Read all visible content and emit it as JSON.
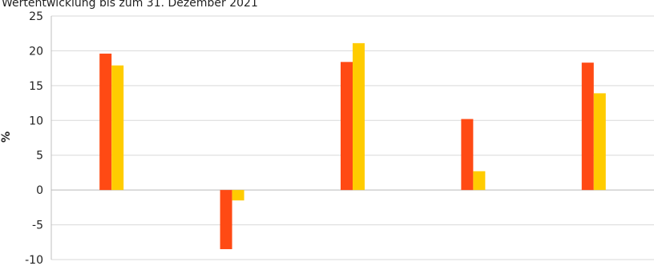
{
  "chart_data": {
    "type": "bar",
    "title": "Wertentwicklung bis zum 31. Dezember 2021",
    "ylabel": "%",
    "xlabel": "",
    "ylim": [
      -10,
      25
    ],
    "yticks": [
      25,
      20,
      15,
      10,
      5,
      0,
      -5,
      -10
    ],
    "grid": true,
    "categories": [
      "",
      "",
      "",
      "",
      ""
    ],
    "series": [
      {
        "color": "#FF4A14",
        "values": [
          19.6,
          -8.5,
          18.4,
          10.2,
          18.3
        ]
      },
      {
        "color": "#FFCC00",
        "values": [
          17.9,
          -1.5,
          21.1,
          2.7,
          13.9
        ]
      }
    ]
  }
}
